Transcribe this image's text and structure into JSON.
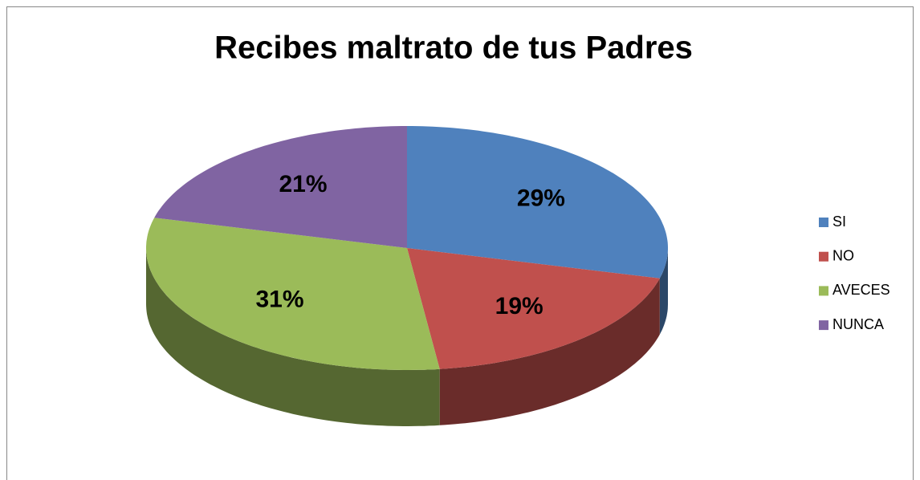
{
  "chart_data": {
    "type": "pie3d",
    "title": "Recibes maltrato de tus Padres",
    "categories": [
      "SI",
      "NO",
      "AVECES",
      "NUNCA"
    ],
    "values": [
      29,
      19,
      31,
      21
    ],
    "value_labels": [
      "29%",
      "19%",
      "31%",
      "21%"
    ],
    "colors": [
      "#4f81bd",
      "#c0504d",
      "#9bbb59",
      "#8064a2"
    ],
    "legend": "right"
  }
}
